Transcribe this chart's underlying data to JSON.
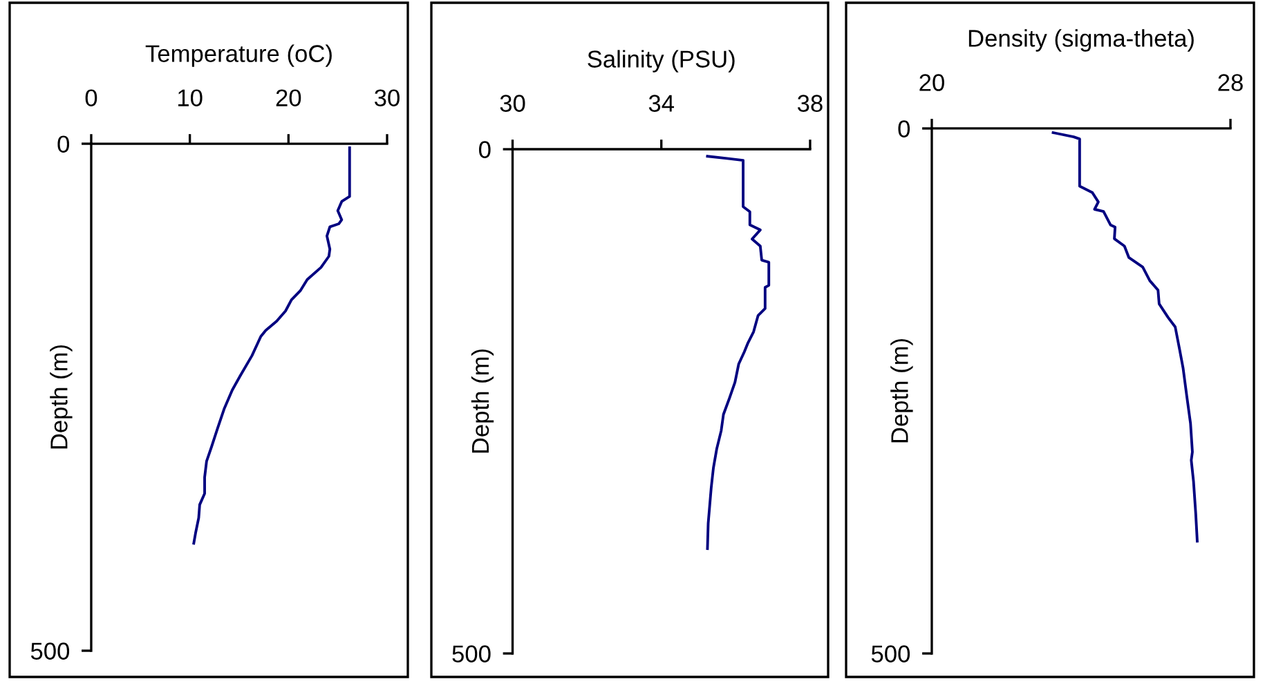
{
  "chart_data": [
    {
      "type": "line",
      "xlabel": "Temperature (oC)",
      "ylabel": "Depth (m)",
      "xlim": [
        0,
        30
      ],
      "xticks": [
        0,
        10,
        20,
        30
      ],
      "ylim": [
        500,
        0
      ],
      "yticks": [
        0,
        500
      ],
      "grid": false,
      "legend": false,
      "series": [
        {
          "color": "#000080",
          "x": [
            26.2,
            26.2,
            25.4,
            25.0,
            25.4,
            25.1,
            24.2,
            23.9,
            24.2,
            24.1,
            23.3,
            21.9,
            21.2,
            20.3,
            19.7,
            18.8,
            17.7,
            17.2,
            16.3,
            15.1,
            14.3,
            13.5,
            12.8,
            12.2,
            11.7,
            11.5,
            11.5,
            11.0,
            10.9,
            10.6,
            10.4
          ],
          "values": [
            4,
            52,
            57,
            66,
            75,
            79,
            82,
            91,
            104,
            111,
            122,
            134,
            145,
            154,
            165,
            175,
            184,
            190,
            209,
            229,
            243,
            261,
            281,
            299,
            313,
            329,
            345,
            356,
            369,
            383,
            394
          ]
        }
      ]
    },
    {
      "type": "line",
      "xlabel": "Salinity (PSU)",
      "ylabel": "Depth (m)",
      "xlim": [
        30,
        38
      ],
      "xticks": [
        30,
        34,
        38
      ],
      "ylim": [
        500,
        0
      ],
      "yticks": [
        0,
        500
      ],
      "grid": false,
      "legend": false,
      "series": [
        {
          "color": "#000080",
          "x": [
            35.24,
            35.73,
            36.2,
            36.2,
            36.38,
            36.38,
            36.66,
            36.44,
            36.66,
            36.7,
            36.89,
            36.89,
            36.79,
            36.79,
            36.6,
            36.48,
            36.33,
            36.23,
            36.08,
            35.98,
            35.83,
            35.67,
            35.61,
            35.49,
            35.4,
            35.34,
            35.26,
            35.24
          ],
          "values": [
            7,
            9,
            11,
            57,
            62,
            75,
            80,
            89,
            96,
            110,
            112,
            135,
            137,
            158,
            165,
            181,
            192,
            201,
            213,
            231,
            247,
            263,
            279,
            297,
            316,
            336,
            371,
            396
          ]
        }
      ]
    },
    {
      "type": "line",
      "xlabel": "Density (sigma-theta)",
      "ylabel": "Depth (m)",
      "xlim": [
        20,
        28
      ],
      "xticks": [
        20,
        28
      ],
      "ylim": [
        500,
        0
      ],
      "yticks": [
        0,
        500
      ],
      "grid": false,
      "legend": false,
      "series": [
        {
          "color": "#000080",
          "x": [
            23.25,
            23.8,
            23.96,
            23.96,
            24.3,
            24.46,
            24.36,
            24.6,
            24.79,
            24.91,
            24.89,
            25.16,
            25.28,
            25.65,
            25.84,
            26.06,
            26.09,
            26.33,
            26.52,
            26.64,
            26.73,
            26.83,
            26.93,
            26.98,
            26.95,
            27.01,
            27.07,
            27.11
          ],
          "values": [
            4,
            8,
            10,
            55,
            61,
            70,
            77,
            79,
            92,
            94,
            105,
            112,
            123,
            132,
            145,
            154,
            167,
            180,
            189,
            211,
            228,
            255,
            281,
            308,
            316,
            336,
            367,
            393
          ]
        }
      ]
    }
  ]
}
